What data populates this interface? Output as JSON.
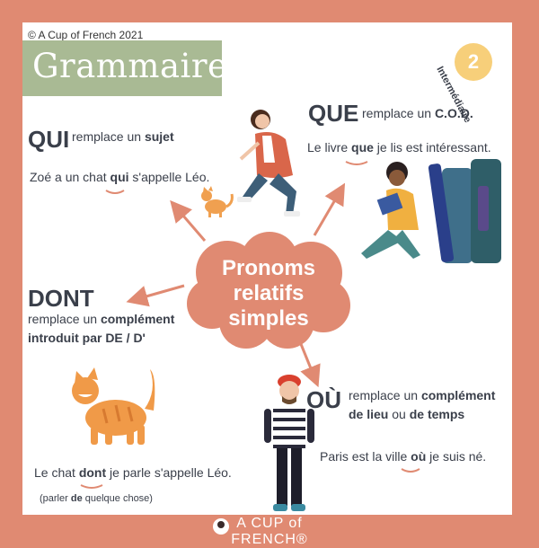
{
  "copyright": "© A Cup of French 2021",
  "banner": "Grammaire",
  "badge": {
    "number": "2",
    "level": "Intermédiaire"
  },
  "center": {
    "line1": "Pronoms",
    "line2": "relatifs",
    "line3": "simples"
  },
  "qui": {
    "title": "QUI",
    "desc_pre": "remplace un ",
    "desc_bold": "sujet",
    "ex_pre": "Zoé a un chat ",
    "ex_bold": "qui",
    "ex_post": " s'appelle Léo."
  },
  "que": {
    "title": "QUE",
    "desc_pre": "remplace un ",
    "desc_bold": "C.O.D.",
    "ex_pre": "Le livre ",
    "ex_bold": "que",
    "ex_post": " je lis est intéressant."
  },
  "dont": {
    "title": "DONT",
    "desc_pre": "remplace un ",
    "desc_bold1": "complément",
    "desc_bold2": "introduit par DE / D'",
    "ex_pre": "Le chat ",
    "ex_bold": "dont",
    "ex_post": " je parle s'appelle Léo.",
    "note_pre": "(parler ",
    "note_bold": "de",
    "note_post": " quelque chose)"
  },
  "ou": {
    "title": "OÙ",
    "desc_pre": "remplace un ",
    "desc_bold1": "complément",
    "desc_bold2": "de lieu",
    "desc_mid": " ou ",
    "desc_bold3": "de temps",
    "ex_pre": "Paris est la ville ",
    "ex_bold": "où",
    "ex_post": " je suis né."
  },
  "footer": "A CUP of FRENCH®",
  "colors": {
    "frame": "#e08a72",
    "banner": "#a9ba94",
    "badge": "#f7cf7a",
    "accent": "#e08a72",
    "text": "#3a3f4a"
  }
}
